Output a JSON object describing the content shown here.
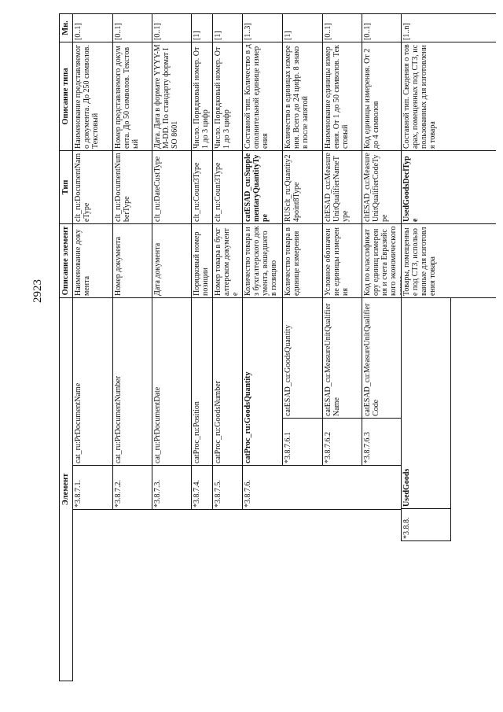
{
  "page_number": "2923",
  "table": {
    "headers": {
      "element": "Элемент",
      "element_description": "Описание элемента",
      "type": "Тип",
      "type_description": "Описание типа",
      "multiplicity": "Мн."
    },
    "rows": [
      {
        "number": "*3.8.7.1.",
        "name": "cat_ru:PrDocumentName",
        "description": "Наименование документа",
        "type": "clt_ru:DocumentNameType",
        "type_description": "Наименование представляемого документа. До 250 символов. Текстовый",
        "multiplicity": "[0..1]"
      },
      {
        "number": "*3.8.7.2.",
        "name": "cat_ru:PrDocumentNumber",
        "description": "Номер документа",
        "type": "clt_ru:DocumentNumberType",
        "type_description": "Номер представляемого документа. До 50 символов. Текстовый",
        "multiplicity": "[0..1]"
      },
      {
        "number": "*3.8.7.3.",
        "name": "cat_ru:PrDocumentDate",
        "description": "Дата документа",
        "type": "clt_ru:DateCustType",
        "type_description": "Дата. Дата в формате YYYY-MM-DD. По стандарту формат ISO 8601",
        "multiplicity": "[0..1]"
      },
      {
        "number": "*3.8.7.4.",
        "name": "catProc_ru:Position",
        "description": "Порядковый номер позиции",
        "type": "clt_ru:Count3Type",
        "type_description": "Число. Порядковый номер. От 1 до 3 цифр",
        "multiplicity": "[1]"
      },
      {
        "number": "*3.8.7.5.",
        "name": "catProc_ru:GoodsNumber",
        "description": "Номер товара в бухгалтерском документе",
        "type": "clt_ru:Count3Type",
        "type_description": "Число. Порядковый номер. От 1 до 3 цифр",
        "multiplicity": "[1]"
      },
      {
        "number": "*3.8.7.6.",
        "name": "catProc_ru:GoodsQuantity",
        "description": "Количество товара из бухгалтерского документа, вошедшего в позицию",
        "type": "catESAD_cu:SupplementaryQuantityType",
        "type_description": "Составной тип. Количество в дополнительной единице измерения",
        "multiplicity": "[1..3]"
      },
      {
        "number": "*3.8.7.6.1",
        "name": "catESAD_cu:GoodsQuantity",
        "description": "Количество товара в единице измерения",
        "type": "RUSclt_ru:Quantity24point8Type",
        "type_description": "Количество в единицах измерения. Всего до 24 цифр. 8 знаков после запятой",
        "multiplicity": "[1]"
      },
      {
        "number": "*3.8.7.6.2",
        "name": "catESAD_cu:MeasureUnitQualifierName",
        "description": "Условное обозначение единицы измерения",
        "type": "cltESAD_cu:MeasureUnitQualifierNameType",
        "type_description": "Наименование единицы измерения. От 1 до 50 символов. Текстовый",
        "multiplicity": "[0..1]"
      },
      {
        "number": "*3.8.7.6.3",
        "name": "catESAD_cu:MeasureUnitQualifierCode",
        "description": "Код по классификатору единиц измерения и счета Евразийского экономического союза",
        "type": "cltESAD_cu:MeasureUnitQualifierCodeType",
        "type_description": "Код единицы измерения. От 2 до 4 символов",
        "multiplicity": "[0..1]"
      },
      {
        "number": "*3.8.8.",
        "name": "UsedGoods",
        "description": "Товары, помещенные под СТЗ, использованные для изготовления товара",
        "type": "UsedGoodsDeclType",
        "type_description": "Составной тип. Сведения о товарах, помещенных под СТЗ, использованных для изготовления товара",
        "multiplicity": "[1..n]"
      }
    ]
  }
}
